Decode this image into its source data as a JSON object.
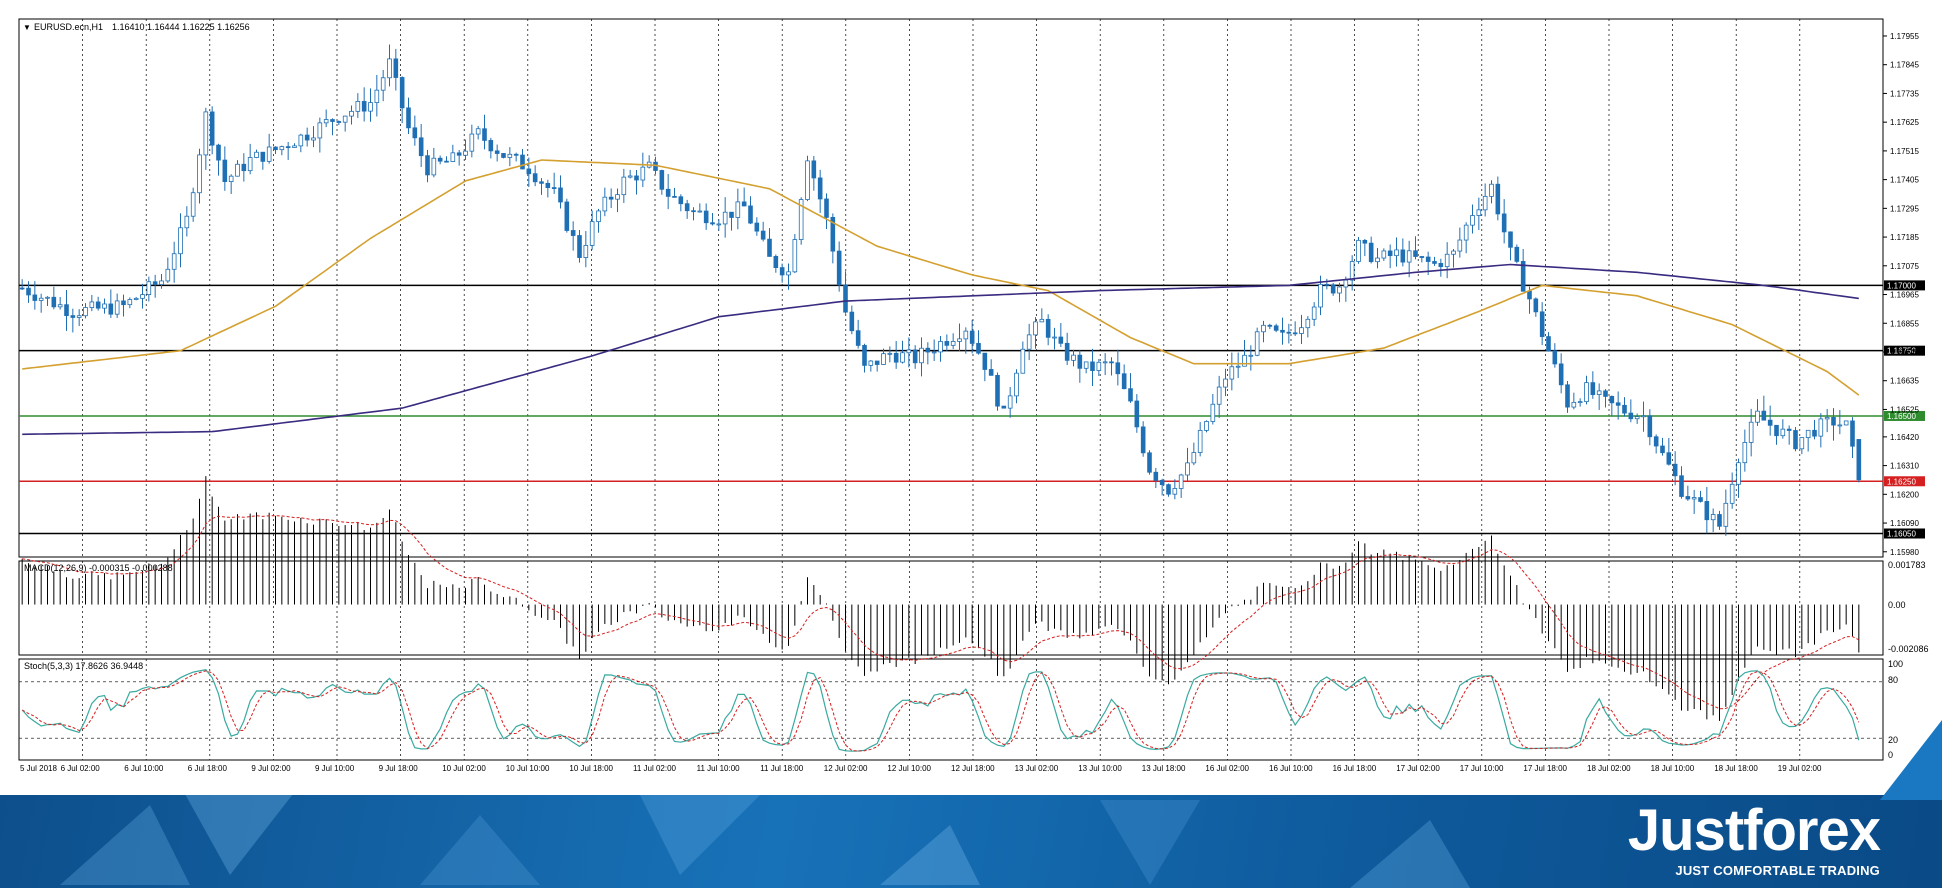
{
  "header": {
    "symbol": "EURUSD.ecn,H1",
    "ohlc": "1.16410 1.16444 1.16225 1.16256"
  },
  "macd": {
    "label": "MACD(12,26,9) -0.000315 -0.000288",
    "ticks": [
      "0.001783",
      "0.00",
      "-0.002086"
    ]
  },
  "stoch": {
    "label": "Stoch(5,3,3) 17.8626 36.9448",
    "ticks": [
      "100",
      "80",
      "20",
      "0"
    ]
  },
  "brand": {
    "name": "Justforex",
    "tagline": "JUST COMFORTABLE TRADING"
  },
  "colors": {
    "bull": "#ffffff",
    "bear": "#1f6fb4",
    "candle_outline": "#1f6fb4",
    "ma_fast": "#d4a030",
    "ma_slow": "#3a2a80",
    "macd_signal": "#d62020",
    "stoch_main": "#3aaaa0",
    "stoch_signal": "#d62020",
    "level_green": "#2e8b2e",
    "level_red": "#d42020",
    "level_black": "#000000"
  },
  "chart_data": {
    "type": "candlestick",
    "x_labels": [
      "5 Jul 2018",
      "6 Jul 02:00",
      "6 Jul 10:00",
      "6 Jul 18:00",
      "9 Jul 02:00",
      "9 Jul 10:00",
      "9 Jul 18:00",
      "10 Jul 02:00",
      "10 Jul 10:00",
      "10 Jul 18:00",
      "11 Jul 02:00",
      "11 Jul 10:00",
      "11 Jul 18:00",
      "12 Jul 02:00",
      "12 Jul 10:00",
      "12 Jul 18:00",
      "13 Jul 02:00",
      "13 Jul 10:00",
      "13 Jul 18:00",
      "16 Jul 02:00",
      "16 Jul 10:00",
      "16 Jul 18:00",
      "17 Jul 02:00",
      "17 Jul 10:00",
      "17 Jul 18:00",
      "18 Jul 02:00",
      "18 Jul 10:00",
      "18 Jul 18:00",
      "19 Jul 02:00"
    ],
    "y_ticks": [
      "1.17955",
      "1.17845",
      "1.17735",
      "1.17625",
      "1.17515",
      "1.17405",
      "1.17295",
      "1.17185",
      "1.17075",
      "1.16965",
      "1.16855",
      "1.16745",
      "1.16635",
      "1.16525",
      "1.16420",
      "1.16310",
      "1.16200",
      "1.16090",
      "1.15980"
    ],
    "ylim": [
      1.1596,
      1.1802
    ],
    "levels": [
      {
        "price": 1.17,
        "label": "1.17000",
        "color": "#000000"
      },
      {
        "price": 1.1675,
        "label": "1.16750",
        "color": "#000000"
      },
      {
        "price": 1.165,
        "label": "1.16500",
        "color": "#2e8b2e"
      },
      {
        "price": 1.1625,
        "label": "1.16250",
        "color": "#d42020"
      },
      {
        "price": 1.1605,
        "label": "1.16050",
        "color": "#000000"
      }
    ],
    "close_anchors": [
      [
        0,
        1.1699
      ],
      [
        8,
        1.169
      ],
      [
        16,
        1.1692
      ],
      [
        22,
        1.1702
      ],
      [
        26,
        1.1725
      ],
      [
        29,
        1.1765
      ],
      [
        32,
        1.174
      ],
      [
        36,
        1.1748
      ],
      [
        40,
        1.1752
      ],
      [
        45,
        1.1758
      ],
      [
        50,
        1.1765
      ],
      [
        55,
        1.177
      ],
      [
        58,
        1.1785
      ],
      [
        61,
        1.176
      ],
      [
        64,
        1.1745
      ],
      [
        68,
        1.1748
      ],
      [
        72,
        1.1758
      ],
      [
        76,
        1.175
      ],
      [
        80,
        1.1745
      ],
      [
        84,
        1.1735
      ],
      [
        88,
        1.1712
      ],
      [
        91,
        1.1728
      ],
      [
        95,
        1.174
      ],
      [
        99,
        1.1745
      ],
      [
        102,
        1.1735
      ],
      [
        106,
        1.1728
      ],
      [
        110,
        1.1726
      ],
      [
        114,
        1.173
      ],
      [
        118,
        1.171
      ],
      [
        121,
        1.1705
      ],
      [
        124,
        1.175
      ],
      [
        127,
        1.1725
      ],
      [
        130,
        1.169
      ],
      [
        133,
        1.1668
      ],
      [
        137,
        1.1674
      ],
      [
        141,
        1.1672
      ],
      [
        145,
        1.1678
      ],
      [
        149,
        1.1684
      ],
      [
        152,
        1.167
      ],
      [
        155,
        1.165
      ],
      [
        158,
        1.1678
      ],
      [
        161,
        1.1686
      ],
      [
        164,
        1.1675
      ],
      [
        168,
        1.1668
      ],
      [
        172,
        1.167
      ],
      [
        175,
        1.1654
      ],
      [
        178,
        1.163
      ],
      [
        181,
        1.1622
      ],
      [
        184,
        1.163
      ],
      [
        187,
        1.1648
      ],
      [
        190,
        1.1665
      ],
      [
        193,
        1.1672
      ],
      [
        196,
        1.1683
      ],
      [
        199,
        1.168
      ],
      [
        202,
        1.1686
      ],
      [
        205,
        1.1698
      ],
      [
        208,
        1.17
      ],
      [
        211,
        1.1715
      ],
      [
        214,
        1.171
      ],
      [
        217,
        1.1712
      ],
      [
        220,
        1.171
      ],
      [
        223,
        1.1708
      ],
      [
        226,
        1.1712
      ],
      [
        229,
        1.1728
      ],
      [
        232,
        1.1738
      ],
      [
        235,
        1.1712
      ],
      [
        238,
        1.1695
      ],
      [
        241,
        1.1675
      ],
      [
        244,
        1.1655
      ],
      [
        247,
        1.166
      ],
      [
        250,
        1.1655
      ],
      [
        253,
        1.1652
      ],
      [
        256,
        1.165
      ],
      [
        259,
        1.1635
      ],
      [
        262,
        1.1622
      ],
      [
        265,
        1.1615
      ],
      [
        268,
        1.1608
      ],
      [
        271,
        1.1635
      ],
      [
        274,
        1.165
      ],
      [
        277,
        1.1645
      ],
      [
        280,
        1.164
      ],
      [
        283,
        1.1645
      ],
      [
        286,
        1.1648
      ],
      [
        288,
        1.1646
      ],
      [
        290,
        1.16256
      ]
    ],
    "ma_fast": [
      [
        0,
        1.1668
      ],
      [
        25,
        1.1675
      ],
      [
        40,
        1.1692
      ],
      [
        55,
        1.1718
      ],
      [
        70,
        1.174
      ],
      [
        82,
        1.1748
      ],
      [
        100,
        1.1746
      ],
      [
        118,
        1.1737
      ],
      [
        135,
        1.1715
      ],
      [
        150,
        1.1704
      ],
      [
        162,
        1.1698
      ],
      [
        175,
        1.168
      ],
      [
        185,
        1.167
      ],
      [
        200,
        1.167
      ],
      [
        215,
        1.1676
      ],
      [
        230,
        1.169
      ],
      [
        240,
        1.17
      ],
      [
        255,
        1.1696
      ],
      [
        270,
        1.1685
      ],
      [
        285,
        1.1667
      ],
      [
        290,
        1.1658
      ]
    ],
    "ma_slow": [
      [
        0,
        1.1643
      ],
      [
        30,
        1.1644
      ],
      [
        60,
        1.1653
      ],
      [
        90,
        1.1673
      ],
      [
        110,
        1.1688
      ],
      [
        130,
        1.1694
      ],
      [
        150,
        1.1696
      ],
      [
        170,
        1.1698
      ],
      [
        200,
        1.17
      ],
      [
        220,
        1.1705
      ],
      [
        235,
        1.1708
      ],
      [
        255,
        1.1705
      ],
      [
        275,
        1.17
      ],
      [
        290,
        1.1695
      ]
    ],
    "macd_range": [
      -0.002086,
      0.001783
    ],
    "stoch_range": [
      0,
      100
    ]
  }
}
